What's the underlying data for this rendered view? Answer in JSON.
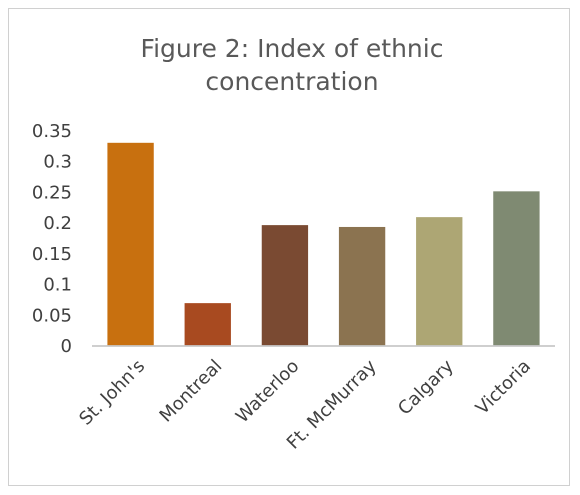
{
  "chart_data": {
    "type": "bar",
    "title": "Figure 2: Index of ethnic concentration",
    "title_lines": [
      "Figure 2: Index of ethnic",
      "concentration"
    ],
    "xlabel": "",
    "ylabel": "",
    "categories": [
      "St. John's",
      "Montreal",
      "Waterloo",
      "Ft. McMurray",
      "Calgary",
      "Victoria"
    ],
    "values": [
      0.332,
      0.071,
      0.198,
      0.195,
      0.211,
      0.253
    ],
    "ylim": [
      0,
      0.35
    ],
    "yticks": [
      0,
      0.05,
      0.1,
      0.15,
      0.2,
      0.25,
      0.3,
      0.35
    ],
    "ytick_labels": [
      "0",
      "0.05",
      "0.1",
      "0.15",
      "0.2",
      "0.25",
      "0.3",
      "0.35"
    ],
    "grid": false,
    "legend": "none",
    "bar_colors": [
      "#c8700f",
      "#a84a20",
      "#7a4a32",
      "#8b7350",
      "#ada674",
      "#7f8a72"
    ],
    "axis_color": "#bfbfbf"
  }
}
